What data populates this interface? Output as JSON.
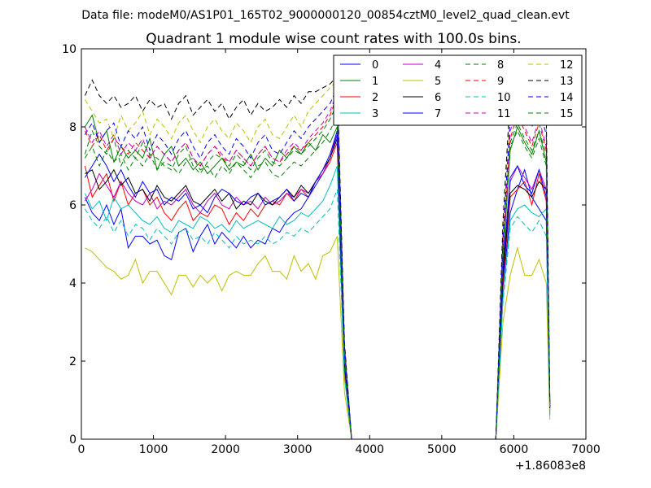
{
  "suptitle": "Data file: modeM0/AS1P01_165T02_9000000120_00854cztM0_level2_quad_clean.evt",
  "chart_data": {
    "type": "line",
    "title": "Quadrant 1 module wise count rates with 100.0s bins.",
    "xlabel": "",
    "ylabel": "",
    "x_offset_label": "+1.86083e8",
    "xlim": [
      0,
      7000
    ],
    "ylim": [
      0,
      10
    ],
    "xticks": [
      0,
      1000,
      2000,
      3000,
      4000,
      5000,
      6000,
      7000
    ],
    "yticks": [
      0,
      2,
      4,
      6,
      8,
      10
    ],
    "grid": false,
    "legend_position": "top-right",
    "x": [
      50,
      150,
      250,
      350,
      450,
      550,
      650,
      750,
      850,
      950,
      1050,
      1150,
      1250,
      1350,
      1450,
      1550,
      1650,
      1750,
      1850,
      1950,
      2050,
      2150,
      2250,
      2350,
      2450,
      2550,
      2650,
      2750,
      2850,
      2950,
      3050,
      3150,
      3250,
      3350,
      3450,
      3550,
      3650,
      3750,
      3850,
      3950,
      4050,
      4150,
      4250,
      4350,
      4450,
      4550,
      4650,
      4750,
      4850,
      4950,
      5050,
      5150,
      5250,
      5350,
      5450,
      5550,
      5650,
      5750,
      5850,
      5950,
      6050,
      6150,
      6250,
      6350,
      6450,
      6500
    ],
    "series": [
      {
        "name": "0",
        "color": "#0000ff",
        "dash": "solid",
        "values": [
          6.2,
          5.8,
          5.6,
          6.0,
          5.5,
          5.9,
          4.9,
          5.2,
          5.2,
          5.0,
          5.1,
          4.7,
          4.6,
          5.3,
          5.4,
          4.8,
          5.2,
          5.5,
          5.0,
          5.3,
          5.1,
          4.9,
          5.2,
          4.9,
          5.1,
          5.0,
          5.4,
          5.3,
          5.6,
          5.8,
          5.9,
          6.2,
          6.5,
          6.8,
          7.2,
          7.8,
          2.0,
          0,
          0,
          0,
          0,
          0,
          0,
          0,
          0,
          0,
          0,
          0,
          0,
          0,
          0,
          0,
          0,
          0,
          0,
          0,
          0,
          0,
          3.9,
          5.8,
          6.4,
          6.9,
          6.2,
          5.9,
          5.6,
          0.8
        ]
      },
      {
        "name": "1",
        "color": "#008000",
        "dash": "solid",
        "values": [
          8.0,
          8.3,
          7.6,
          7.9,
          7.1,
          7.5,
          7.2,
          7.4,
          7.2,
          7.7,
          6.9,
          7.3,
          7.5,
          7.0,
          7.2,
          6.9,
          7.1,
          6.8,
          7.0,
          7.2,
          6.9,
          7.1,
          7.0,
          7.3,
          6.9,
          7.2,
          7.0,
          7.4,
          7.2,
          7.5,
          7.3,
          7.6,
          7.4,
          7.8,
          7.6,
          8.0,
          2.1,
          0,
          0,
          0,
          0,
          0,
          0,
          0,
          0,
          0,
          0,
          0,
          0,
          0,
          0,
          0,
          0,
          0,
          0,
          0,
          0,
          0,
          4.6,
          7.4,
          8.0,
          7.6,
          7.3,
          7.9,
          7.1,
          0.9
        ]
      },
      {
        "name": "2",
        "color": "#ff0000",
        "dash": "solid",
        "values": [
          7.0,
          6.2,
          6.5,
          6.8,
          6.1,
          6.6,
          6.0,
          6.3,
          6.4,
          6.0,
          6.2,
          5.8,
          5.6,
          5.9,
          6.1,
          5.6,
          5.8,
          5.7,
          6.0,
          5.9,
          5.5,
          5.8,
          5.6,
          5.9,
          5.7,
          6.0,
          6.1,
          6.0,
          6.3,
          6.1,
          6.4,
          6.2,
          6.6,
          6.8,
          7.1,
          7.6,
          1.8,
          0,
          0,
          0,
          0,
          0,
          0,
          0,
          0,
          0,
          0,
          0,
          0,
          0,
          0,
          0,
          0,
          0,
          0,
          0,
          0,
          0,
          4.0,
          6.2,
          6.4,
          6.6,
          6.0,
          6.8,
          6.1,
          0.7
        ]
      },
      {
        "name": "3",
        "color": "#00bfbf",
        "dash": "solid",
        "values": [
          6.3,
          5.9,
          6.1,
          5.6,
          6.2,
          5.9,
          6.0,
          5.8,
          5.6,
          5.5,
          5.7,
          5.4,
          5.3,
          5.6,
          5.5,
          5.4,
          5.7,
          5.6,
          5.4,
          5.5,
          5.3,
          5.6,
          5.4,
          5.5,
          5.6,
          5.5,
          5.4,
          5.7,
          5.5,
          5.6,
          5.8,
          5.7,
          5.9,
          6.1,
          6.5,
          7.0,
          1.6,
          0,
          0,
          0,
          0,
          0,
          0,
          0,
          0,
          0,
          0,
          0,
          0,
          0,
          0,
          0,
          0,
          0,
          0,
          0,
          0,
          0,
          3.6,
          5.6,
          5.9,
          6.0,
          5.8,
          5.7,
          5.9,
          0.6
        ]
      },
      {
        "name": "4",
        "color": "#bf00bf",
        "dash": "solid",
        "values": [
          6.1,
          6.4,
          6.8,
          6.5,
          6.2,
          6.6,
          6.3,
          6.1,
          6.0,
          6.3,
          5.9,
          6.1,
          6.0,
          6.2,
          6.4,
          6.0,
          5.8,
          6.1,
          6.3,
          6.0,
          5.9,
          6.2,
          6.0,
          6.1,
          5.9,
          6.2,
          6.0,
          6.1,
          6.3,
          6.2,
          6.4,
          6.3,
          6.6,
          6.8,
          7.2,
          7.9,
          1.9,
          0,
          0,
          0,
          0,
          0,
          0,
          0,
          0,
          0,
          0,
          0,
          0,
          0,
          0,
          0,
          0,
          0,
          0,
          0,
          0,
          0,
          4.3,
          6.6,
          7.0,
          6.7,
          6.4,
          6.9,
          6.4,
          0.8
        ]
      },
      {
        "name": "5",
        "color": "#bfbf00",
        "dash": "solid",
        "values": [
          4.9,
          4.8,
          4.6,
          4.4,
          4.3,
          4.1,
          4.2,
          4.6,
          4.0,
          4.3,
          4.3,
          4.0,
          3.7,
          4.2,
          4.2,
          3.9,
          4.2,
          4.0,
          4.2,
          3.8,
          4.2,
          4.3,
          4.2,
          4.2,
          4.5,
          4.7,
          4.3,
          4.3,
          4.1,
          4.7,
          4.3,
          4.5,
          4.1,
          4.7,
          4.8,
          5.2,
          1.2,
          0,
          0,
          0,
          0,
          0,
          0,
          0,
          0,
          0,
          0,
          0,
          0,
          0,
          0,
          0,
          0,
          0,
          0,
          0,
          0,
          0,
          3.0,
          4.2,
          4.9,
          4.2,
          4.2,
          4.6,
          4.0,
          0.5
        ]
      },
      {
        "name": "6",
        "color": "#000000",
        "dash": "solid",
        "values": [
          6.8,
          6.9,
          6.4,
          6.6,
          6.9,
          6.5,
          6.7,
          6.3,
          6.4,
          6.1,
          6.5,
          6.2,
          6.1,
          6.3,
          6.5,
          6.1,
          6.0,
          6.2,
          6.4,
          6.1,
          6.3,
          5.9,
          6.1,
          6.0,
          6.3,
          6.1,
          6.0,
          6.2,
          6.4,
          6.2,
          6.5,
          6.3,
          6.6,
          6.9,
          7.2,
          7.7,
          1.9,
          0,
          0,
          0,
          0,
          0,
          0,
          0,
          0,
          0,
          0,
          0,
          0,
          0,
          0,
          0,
          0,
          0,
          0,
          0,
          0,
          0,
          4.2,
          6.3,
          6.5,
          6.4,
          6.2,
          6.6,
          6.4,
          0.8
        ]
      },
      {
        "name": "7",
        "color": "#0000ff",
        "dash": "solid",
        "values": [
          6.7,
          7.0,
          7.3,
          7.0,
          6.6,
          6.9,
          6.5,
          6.2,
          6.6,
          6.3,
          6.4,
          6.0,
          6.2,
          6.1,
          6.3,
          5.9,
          6.0,
          5.8,
          6.2,
          6.4,
          6.3,
          6.1,
          6.0,
          6.2,
          6.3,
          6.0,
          6.1,
          6.2,
          6.4,
          6.1,
          6.3,
          6.2,
          6.6,
          6.9,
          7.3,
          7.9,
          2.0,
          0,
          0,
          0,
          0,
          0,
          0,
          0,
          0,
          0,
          0,
          0,
          0,
          0,
          0,
          0,
          0,
          0,
          0,
          0,
          0,
          0,
          4.4,
          6.7,
          7.0,
          6.5,
          6.3,
          6.9,
          6.2,
          0.8
        ]
      },
      {
        "name": "8",
        "color": "#008000",
        "dash": "dashed",
        "values": [
          7.3,
          7.9,
          7.5,
          7.3,
          7.7,
          7.0,
          7.4,
          7.2,
          7.6,
          7.3,
          7.2,
          7.0,
          6.9,
          7.3,
          7.5,
          7.0,
          6.8,
          7.1,
          7.3,
          7.2,
          7.0,
          7.3,
          7.1,
          6.9,
          7.2,
          7.4,
          7.1,
          7.0,
          7.2,
          7.4,
          7.3,
          7.5,
          7.7,
          7.9,
          8.2,
          8.6,
          2.2,
          0,
          0,
          0,
          0,
          0,
          0,
          0,
          0,
          0,
          0,
          0,
          0,
          0,
          0,
          0,
          0,
          0,
          0,
          0,
          0,
          0,
          4.8,
          7.6,
          8.1,
          7.7,
          7.4,
          7.9,
          7.3,
          0.9
        ]
      },
      {
        "name": "9",
        "color": "#ff0000",
        "dash": "dashed",
        "values": [
          7.9,
          7.5,
          7.8,
          7.4,
          7.7,
          7.5,
          7.3,
          7.6,
          7.4,
          7.2,
          7.5,
          7.3,
          7.1,
          7.4,
          7.6,
          7.2,
          7.0,
          7.3,
          7.5,
          7.2,
          7.1,
          7.4,
          7.2,
          7.0,
          7.3,
          7.5,
          7.2,
          7.1,
          7.3,
          7.5,
          7.4,
          7.6,
          7.8,
          8.0,
          8.3,
          8.8,
          2.2,
          0,
          0,
          0,
          0,
          0,
          0,
          0,
          0,
          0,
          0,
          0,
          0,
          0,
          0,
          0,
          0,
          0,
          0,
          0,
          0,
          0,
          4.9,
          7.7,
          8.3,
          7.9,
          7.5,
          8.1,
          7.4,
          0.9
        ]
      },
      {
        "name": "10",
        "color": "#00bfbf",
        "dash": "dashed",
        "values": [
          5.9,
          5.6,
          5.4,
          5.7,
          5.3,
          5.6,
          5.2,
          5.5,
          5.4,
          5.1,
          5.4,
          5.2,
          5.0,
          5.3,
          5.4,
          5.1,
          5.2,
          5.0,
          5.3,
          5.1,
          4.9,
          5.2,
          5.0,
          5.1,
          5.0,
          5.2,
          5.0,
          5.1,
          5.3,
          5.2,
          5.4,
          5.3,
          5.5,
          5.7,
          5.9,
          6.4,
          1.6,
          0,
          0,
          0,
          0,
          0,
          0,
          0,
          0,
          0,
          0,
          0,
          0,
          0,
          0,
          0,
          0,
          0,
          0,
          0,
          0,
          0,
          3.5,
          5.4,
          5.7,
          5.5,
          5.3,
          5.6,
          5.2,
          0.6
        ]
      },
      {
        "name": "11",
        "color": "#bf00bf",
        "dash": "dashed",
        "values": [
          8.0,
          7.6,
          7.9,
          7.5,
          7.8,
          7.3,
          7.6,
          7.4,
          7.7,
          7.2,
          7.5,
          7.3,
          7.1,
          7.4,
          7.6,
          7.2,
          7.0,
          7.3,
          7.5,
          7.3,
          7.1,
          7.4,
          7.2,
          7.0,
          7.3,
          7.5,
          7.2,
          7.1,
          7.4,
          7.6,
          7.4,
          7.7,
          7.9,
          8.1,
          8.4,
          8.9,
          2.3,
          0,
          0,
          0,
          0,
          0,
          0,
          0,
          0,
          0,
          0,
          0,
          0,
          0,
          0,
          0,
          0,
          0,
          0,
          0,
          0,
          0,
          5.0,
          7.9,
          8.4,
          8.0,
          7.6,
          8.2,
          7.5,
          0.9
        ]
      },
      {
        "name": "12",
        "color": "#bfbf00",
        "dash": "dashed",
        "values": [
          8.7,
          8.4,
          8.1,
          8.2,
          7.7,
          8.3,
          7.9,
          8.1,
          8.4,
          7.8,
          8.2,
          8.0,
          7.7,
          8.1,
          8.3,
          7.9,
          7.6,
          8.0,
          8.2,
          7.9,
          7.7,
          8.1,
          7.9,
          7.6,
          8.0,
          8.2,
          7.8,
          7.7,
          8.0,
          8.3,
          8.0,
          8.4,
          8.6,
          8.8,
          9.0,
          9.2,
          2.4,
          0,
          0,
          0,
          0,
          0,
          0,
          0,
          0,
          0,
          0,
          0,
          0,
          0,
          0,
          0,
          0,
          0,
          0,
          0,
          0,
          0,
          5.4,
          8.6,
          9.0,
          8.6,
          8.4,
          8.8,
          8.2,
          1.0
        ]
      },
      {
        "name": "13",
        "color": "#000000",
        "dash": "dashed",
        "values": [
          8.8,
          9.2,
          8.8,
          8.6,
          8.8,
          8.5,
          8.6,
          8.8,
          8.4,
          8.7,
          8.5,
          8.6,
          8.2,
          8.6,
          8.8,
          8.3,
          8.5,
          8.7,
          8.4,
          8.6,
          8.2,
          8.5,
          8.7,
          8.3,
          8.6,
          8.4,
          8.5,
          8.7,
          8.5,
          8.8,
          8.6,
          8.9,
          8.9,
          9.0,
          9.1,
          9.3,
          2.5,
          0,
          0,
          0,
          0,
          0,
          0,
          0,
          0,
          0,
          0,
          0,
          0,
          0,
          0,
          0,
          0,
          0,
          0,
          0,
          0,
          0,
          5.6,
          8.8,
          9.3,
          8.9,
          8.6,
          9.1,
          8.4,
          1.0
        ]
      },
      {
        "name": "14",
        "color": "#0000ff",
        "dash": "dashed",
        "values": [
          7.8,
          8.1,
          7.6,
          7.9,
          8.1,
          7.5,
          7.9,
          7.7,
          8.0,
          7.4,
          7.8,
          7.6,
          7.3,
          7.7,
          7.9,
          7.5,
          7.2,
          7.6,
          7.8,
          7.5,
          7.3,
          7.7,
          7.5,
          7.2,
          7.6,
          7.8,
          7.4,
          7.3,
          7.6,
          7.9,
          7.7,
          8.0,
          8.2,
          8.4,
          8.6,
          9.0,
          2.4,
          0,
          0,
          0,
          0,
          0,
          0,
          0,
          0,
          0,
          0,
          0,
          0,
          0,
          0,
          0,
          0,
          0,
          0,
          0,
          0,
          0,
          5.2,
          8.2,
          8.7,
          8.3,
          8.0,
          8.5,
          7.8,
          1.0
        ]
      },
      {
        "name": "15",
        "color": "#008000",
        "dash": "dashed",
        "values": [
          7.2,
          7.5,
          7.0,
          7.4,
          7.1,
          7.3,
          6.9,
          7.2,
          7.0,
          7.3,
          6.9,
          7.1,
          7.0,
          6.8,
          7.1,
          7.2,
          6.9,
          7.0,
          6.7,
          7.0,
          6.8,
          7.1,
          6.9,
          6.7,
          7.0,
          7.1,
          6.8,
          6.7,
          6.9,
          7.1,
          7.0,
          7.2,
          7.4,
          7.6,
          7.9,
          8.3,
          2.1,
          0,
          0,
          0,
          0,
          0,
          0,
          0,
          0,
          0,
          0,
          0,
          0,
          0,
          0,
          0,
          0,
          0,
          0,
          0,
          0,
          0,
          4.7,
          7.5,
          7.9,
          7.5,
          7.2,
          7.7,
          7.0,
          0.9
        ]
      }
    ]
  }
}
